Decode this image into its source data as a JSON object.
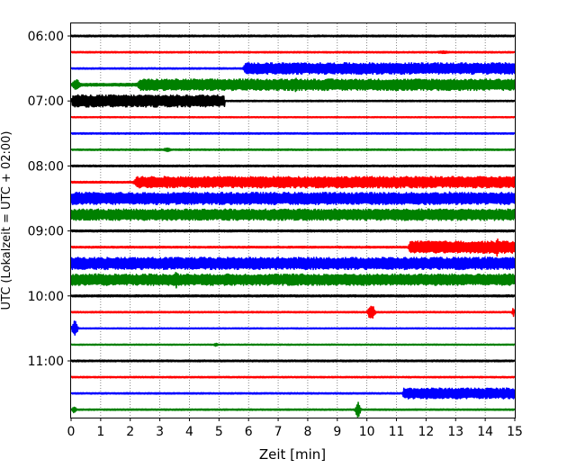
{
  "chart_data": {
    "type": "line",
    "chart_kind": "helicorder",
    "xlabel": "Zeit  [min]",
    "ylabel": "UTC (Lokalzeit = UTC + 02:00)",
    "xlim": [
      0,
      15
    ],
    "x_ticks": [
      0,
      1,
      2,
      3,
      4,
      5,
      6,
      7,
      8,
      9,
      10,
      11,
      12,
      13,
      14,
      15
    ],
    "x_grid": "dotted vertical lines at each minute",
    "y_tick_labels": [
      "06:00",
      "07:00",
      "08:00",
      "09:00",
      "10:00",
      "11:00"
    ],
    "y_tick_trace_index": [
      0,
      4,
      8,
      12,
      16,
      20
    ],
    "trace_interval_minutes": 15,
    "color_cycle": [
      "#000000",
      "#ff0000",
      "#0000ff",
      "#008000"
    ],
    "traces": [
      {
        "start": "06:00",
        "color": "#000000",
        "noise_amplitude": 0.06,
        "events": []
      },
      {
        "start": "06:15",
        "color": "#ff0000",
        "noise_amplitude": 0.05,
        "events": [
          {
            "x_start": 12.3,
            "x_end": 12.9,
            "amplitude": 0.1
          }
        ]
      },
      {
        "start": "06:30",
        "color": "#0000ff",
        "noise_amplitude": 0.05,
        "events": [
          {
            "x_start": 5.8,
            "x_end": 15,
            "amplitude": 0.42
          }
        ]
      },
      {
        "start": "06:45",
        "color": "#008000",
        "noise_amplitude": 0.1,
        "events": [
          {
            "x_start": 0,
            "x_end": 0.35,
            "amplitude": 0.38
          },
          {
            "x_start": 2.2,
            "x_end": 15,
            "amplitude": 0.42
          },
          {
            "x_start": 6.3,
            "x_end": 6.5,
            "amplitude": 0.55
          },
          {
            "x_start": 7.5,
            "x_end": 7.7,
            "amplitude": 0.7
          }
        ]
      },
      {
        "start": "07:00",
        "color": "#000000",
        "noise_amplitude": 0.05,
        "events": [
          {
            "x_start": 0,
            "x_end": 5.2,
            "amplitude": 0.45
          }
        ]
      },
      {
        "start": "07:15",
        "color": "#ff0000",
        "noise_amplitude": 0.04,
        "events": []
      },
      {
        "start": "07:30",
        "color": "#0000ff",
        "noise_amplitude": 0.05,
        "events": []
      },
      {
        "start": "07:45",
        "color": "#008000",
        "noise_amplitude": 0.05,
        "events": [
          {
            "x_start": 3.1,
            "x_end": 3.4,
            "amplitude": 0.15
          }
        ]
      },
      {
        "start": "08:00",
        "color": "#000000",
        "noise_amplitude": 0.06,
        "events": []
      },
      {
        "start": "08:15",
        "color": "#ff0000",
        "noise_amplitude": 0.06,
        "events": [
          {
            "x_start": 2.1,
            "x_end": 15,
            "amplitude": 0.42
          }
        ]
      },
      {
        "start": "08:30",
        "color": "#0000ff",
        "noise_amplitude": 0.45,
        "events": [
          {
            "x_start": 12.7,
            "x_end": 12.9,
            "amplitude": 0.6
          }
        ]
      },
      {
        "start": "08:45",
        "color": "#008000",
        "noise_amplitude": 0.42,
        "events": [
          {
            "x_start": 13.8,
            "x_end": 15,
            "amplitude": 0.1
          }
        ]
      },
      {
        "start": "09:00",
        "color": "#000000",
        "noise_amplitude": 0.07,
        "events": []
      },
      {
        "start": "09:15",
        "color": "#ff0000",
        "noise_amplitude": 0.06,
        "events": [
          {
            "x_start": 11.4,
            "x_end": 15,
            "amplitude": 0.45
          },
          {
            "x_start": 14.3,
            "x_end": 14.5,
            "amplitude": 0.7
          }
        ]
      },
      {
        "start": "09:30",
        "color": "#0000ff",
        "noise_amplitude": 0.45,
        "events": []
      },
      {
        "start": "09:45",
        "color": "#008000",
        "noise_amplitude": 0.42,
        "events": [
          {
            "x_start": 3.4,
            "x_end": 3.7,
            "amplitude": 0.62
          }
        ]
      },
      {
        "start": "10:00",
        "color": "#000000",
        "noise_amplitude": 0.07,
        "events": []
      },
      {
        "start": "10:15",
        "color": "#ff0000",
        "noise_amplitude": 0.05,
        "events": [
          {
            "x_start": 10.0,
            "x_end": 10.3,
            "amplitude": 0.55
          },
          {
            "x_start": 14.9,
            "x_end": 15,
            "amplitude": 0.35
          }
        ]
      },
      {
        "start": "10:30",
        "color": "#0000ff",
        "noise_amplitude": 0.04,
        "events": [
          {
            "x_start": 0,
            "x_end": 0.25,
            "amplitude": 0.55
          }
        ]
      },
      {
        "start": "10:45",
        "color": "#008000",
        "noise_amplitude": 0.04,
        "events": [
          {
            "x_start": 4.8,
            "x_end": 5.0,
            "amplitude": 0.12
          }
        ]
      },
      {
        "start": "11:00",
        "color": "#000000",
        "noise_amplitude": 0.06,
        "events": []
      },
      {
        "start": "11:15",
        "color": "#ff0000",
        "noise_amplitude": 0.05,
        "events": []
      },
      {
        "start": "11:30",
        "color": "#0000ff",
        "noise_amplitude": 0.05,
        "events": [
          {
            "x_start": 11.2,
            "x_end": 15,
            "amplitude": 0.4
          }
        ]
      },
      {
        "start": "11:45",
        "color": "#008000",
        "noise_amplitude": 0.05,
        "events": [
          {
            "x_start": 0,
            "x_end": 0.2,
            "amplitude": 0.25
          },
          {
            "x_start": 9.6,
            "x_end": 9.8,
            "amplitude": 0.6
          }
        ]
      }
    ]
  }
}
